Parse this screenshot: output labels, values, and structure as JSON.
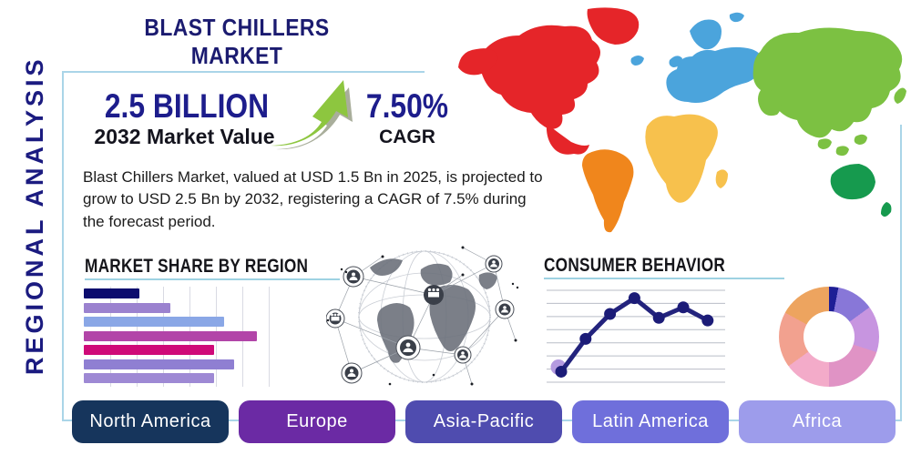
{
  "title": "BLAST CHILLERS MARKET",
  "side_label": "REGIONAL ANALYSIS",
  "stats": {
    "market_value": "2.5 BILLION",
    "market_value_label": "2032 Market Value",
    "cagr_value": "7.50%",
    "cagr_label": "CAGR"
  },
  "description": "Blast Chillers Market, valued at USD 1.5 Bn in 2025, is projected to grow to USD 2.5 Bn by 2032, registering a CAGR of 7.5% during the forecast period.",
  "colors": {
    "accent_navy": "#1b1b80",
    "box_border": "#aad5e8",
    "heading_underline": "#9ed2e2",
    "arrow_green": "#8dc63f",
    "arrow_shadow": "#9aa08a"
  },
  "region_buttons": [
    {
      "label": "North America",
      "color": "#16355c"
    },
    {
      "label": "Europe",
      "color": "#6b2aa4"
    },
    {
      "label": "Asia-Pacific",
      "color": "#4f4caf"
    },
    {
      "label": "Latin America",
      "color": "#6f6fdb"
    },
    {
      "label": "Africa",
      "color": "#9d9ceb"
    }
  ],
  "map_regions": [
    {
      "id": "north-america",
      "name": "North America",
      "color": "#e52529"
    },
    {
      "id": "south-america",
      "name": "South America",
      "color": "#f0861c"
    },
    {
      "id": "europe",
      "name": "Europe",
      "color": "#4ba4dc"
    },
    {
      "id": "africa",
      "name": "Africa",
      "color": "#f7c14d"
    },
    {
      "id": "asia",
      "name": "Asia",
      "color": "#7cc142"
    },
    {
      "id": "australia",
      "name": "Australia",
      "color": "#169a4e"
    }
  ],
  "chart_data": [
    {
      "type": "bar",
      "title": "MARKET SHARE BY REGION",
      "orientation": "horizontal",
      "categories": [
        "",
        "",
        "",
        "",
        "",
        "",
        ""
      ],
      "values": [
        32,
        50,
        81,
        100,
        75,
        87,
        75
      ],
      "unit": "relative share (% of longest bar)",
      "colors": [
        "#0c0c6e",
        "#9b82cf",
        "#8aa7e6",
        "#b245a8",
        "#cf0a78",
        "#8f7fd2",
        "#9e89d4"
      ],
      "grid": "vertical",
      "xlabel": "",
      "ylabel": ""
    },
    {
      "type": "line",
      "title": "CONSUMER BEHAVIOR",
      "x": [
        1,
        2,
        3,
        4,
        5,
        6,
        7
      ],
      "values": [
        0.8,
        3.3,
        5.2,
        6.4,
        4.9,
        5.7,
        4.7
      ],
      "ylim": [
        0,
        7
      ],
      "grid": "horizontal",
      "line_color": "#23237d",
      "marker_color": "#1c1c78",
      "first_marker_halo_color": "#b49ae0",
      "xlabel": "",
      "ylabel": ""
    },
    {
      "type": "pie",
      "donut": true,
      "title": "",
      "values": [
        3,
        12,
        15,
        20,
        15,
        18,
        17
      ],
      "unit": "percent",
      "colors": [
        "#1e1e96",
        "#8877d8",
        "#c795e0",
        "#e093c5",
        "#f3abc9",
        "#f2a18f",
        "#eda45f"
      ]
    }
  ]
}
